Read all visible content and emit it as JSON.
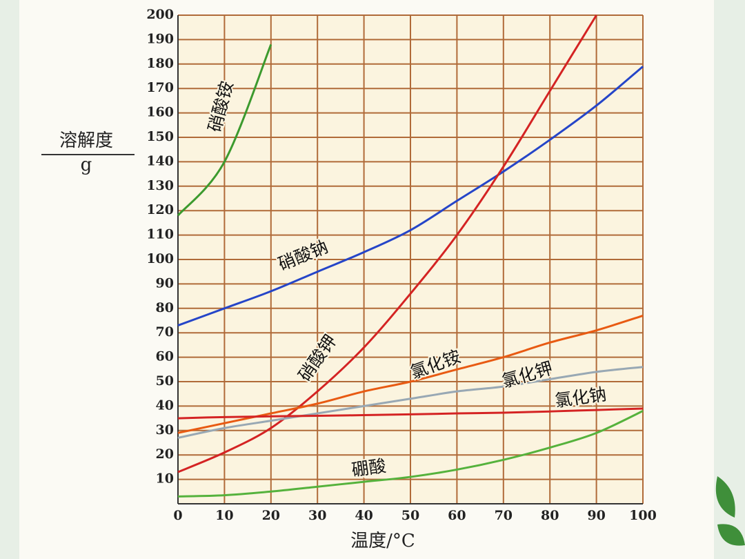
{
  "chart_data": {
    "type": "line",
    "y_label_top": "溶解度",
    "y_label_bottom": "g",
    "x_label": "温度/°C",
    "x": [
      0,
      10,
      20,
      30,
      40,
      50,
      60,
      70,
      80,
      90,
      100
    ],
    "series": [
      {
        "name": "硝酸铵",
        "color": "#3c9a2e",
        "values": [
          118,
          140,
          188,
          null,
          null,
          null,
          null,
          null,
          null,
          null,
          null
        ]
      },
      {
        "name": "硝酸钠",
        "color": "#2545c8",
        "values": [
          73,
          80,
          87,
          95,
          103,
          112,
          124,
          136,
          149,
          163,
          179
        ]
      },
      {
        "name": "硝酸钾",
        "color": "#d42323",
        "values": [
          13,
          21,
          31,
          46,
          64,
          86,
          110,
          138,
          169,
          200,
          null
        ]
      },
      {
        "name": "氯化铵",
        "color": "#e85a12",
        "values": [
          29,
          33,
          37,
          41,
          46,
          50,
          55,
          60,
          66,
          71,
          77
        ]
      },
      {
        "name": "氯化钾",
        "color": "#98a8b4",
        "values": [
          27,
          31,
          34,
          37,
          40,
          43,
          46,
          48,
          51,
          54,
          56
        ]
      },
      {
        "name": "氯化钠",
        "color": "#d42323",
        "values": [
          35,
          35.5,
          35.8,
          36,
          36.3,
          36.6,
          37,
          37.3,
          37.8,
          38.4,
          39
        ]
      },
      {
        "name": "硼酸",
        "color": "#55b23c",
        "values": [
          3,
          3.5,
          5,
          7,
          9,
          11,
          14,
          18,
          23,
          29,
          38
        ]
      }
    ],
    "xlim": [
      0,
      100
    ],
    "ylim": [
      0,
      200
    ],
    "xticks": [
      0,
      10,
      20,
      30,
      40,
      50,
      60,
      70,
      80,
      90,
      100
    ],
    "yticks": [
      10,
      20,
      30,
      40,
      50,
      60,
      70,
      80,
      90,
      100,
      110,
      120,
      130,
      140,
      150,
      160,
      170,
      180,
      190,
      200
    ],
    "grid": true
  }
}
